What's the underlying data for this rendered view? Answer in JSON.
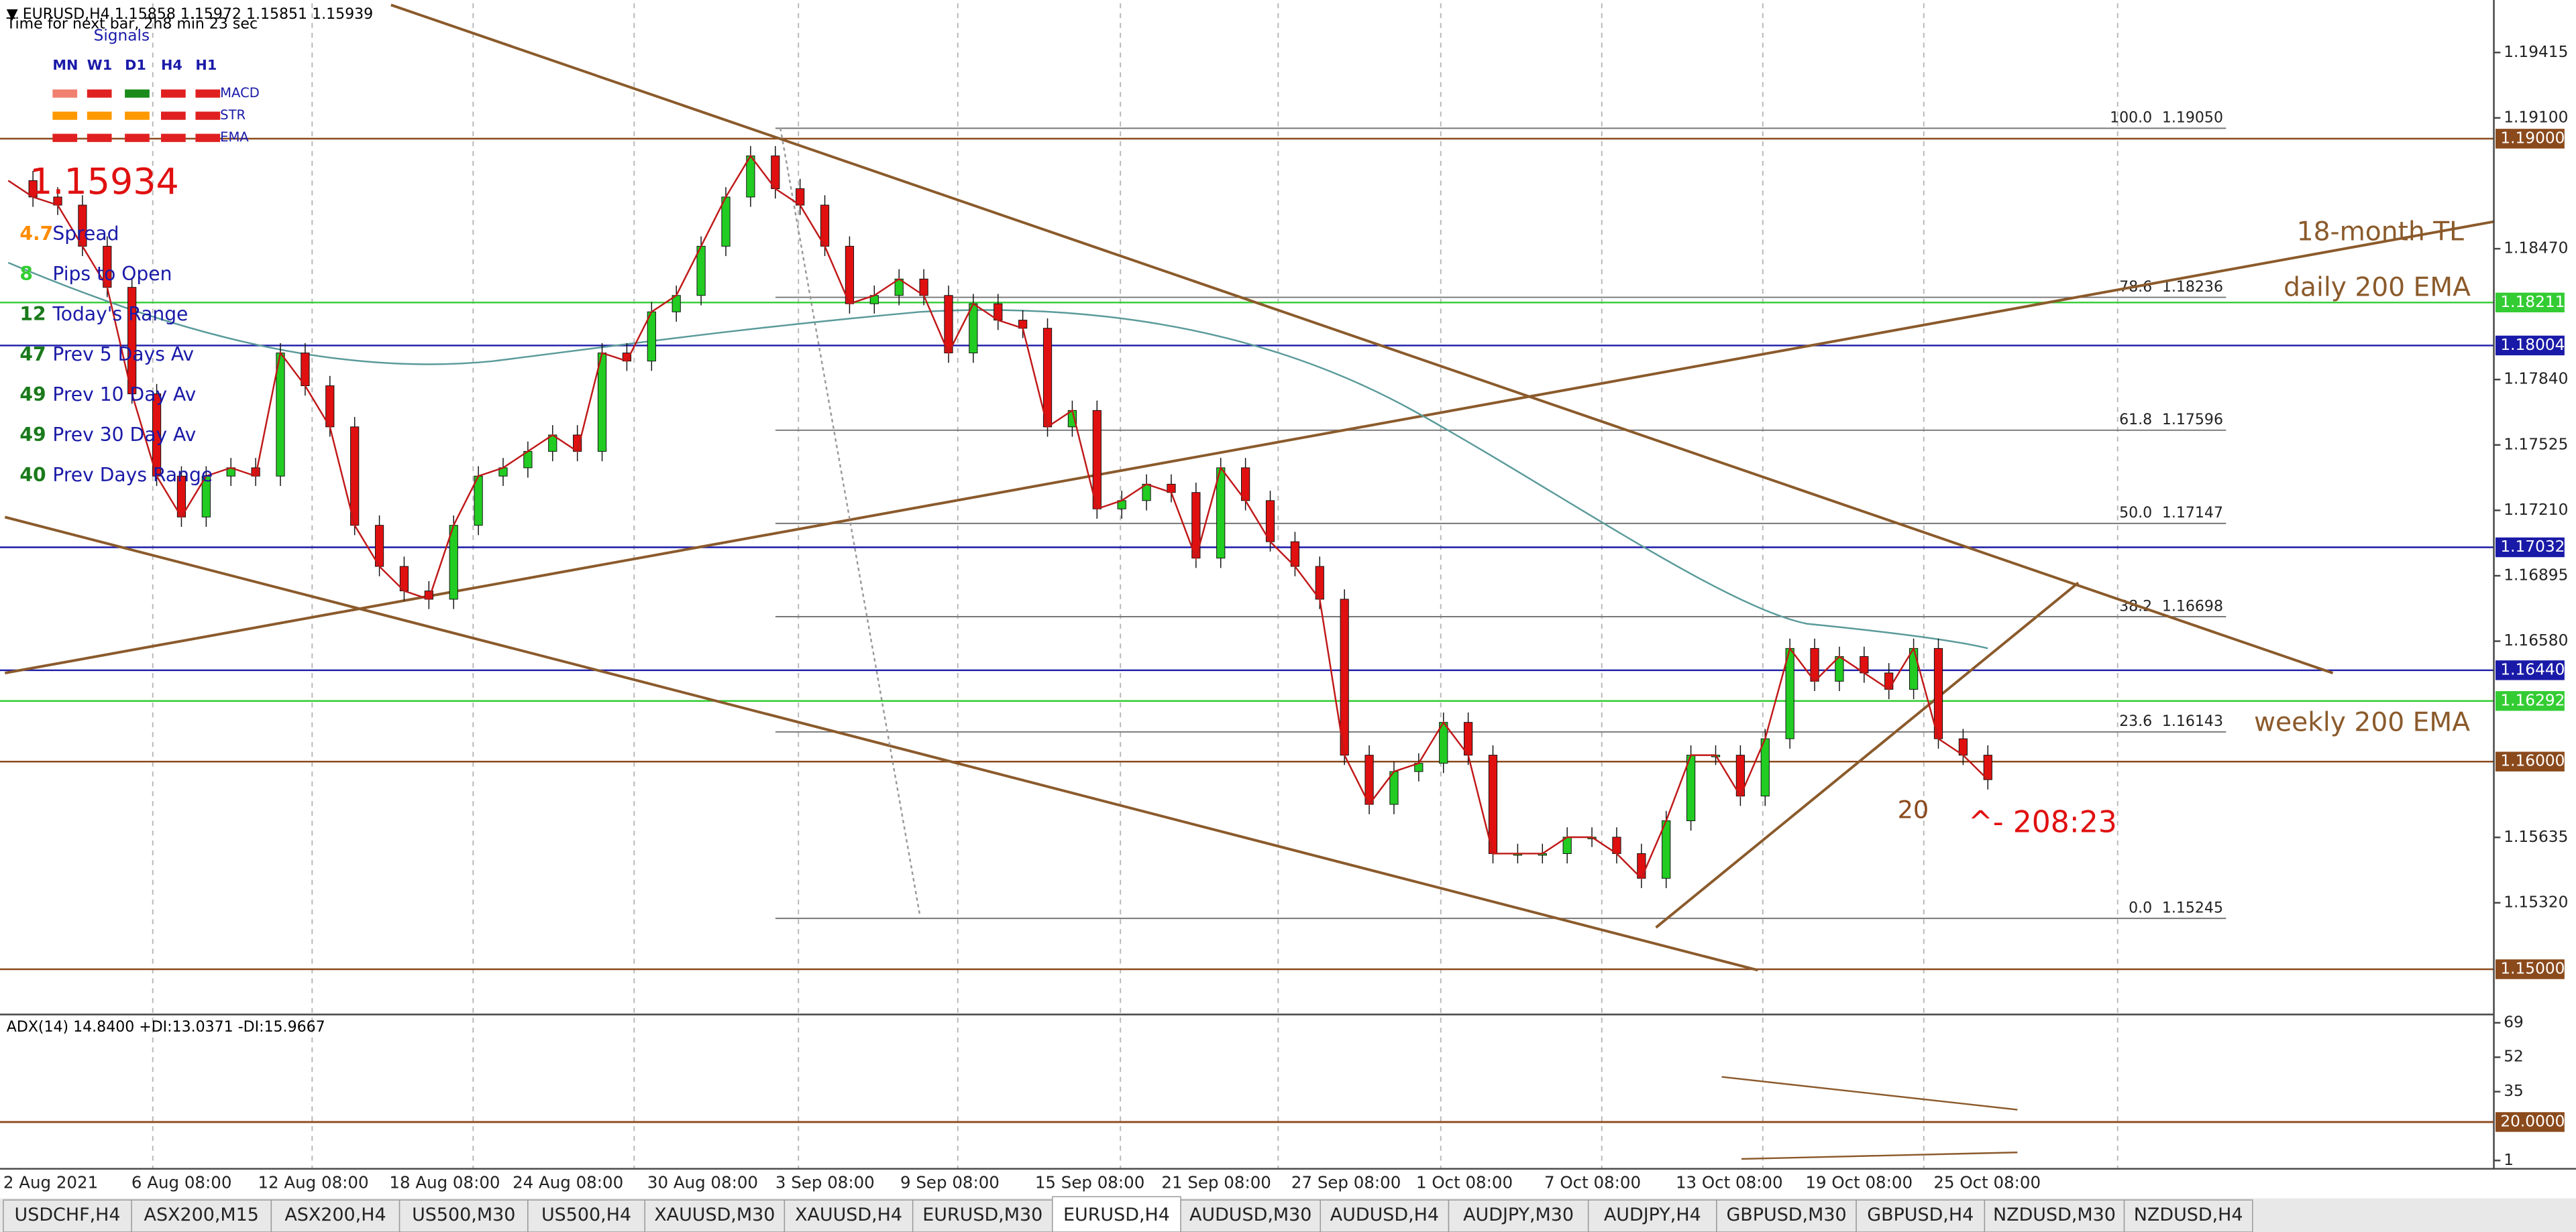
{
  "header": {
    "symbol_line": "▼ EURUSD,H4  1.15858 1.15972 1.15851 1.15939",
    "timer": "Time for next bar, 2h8 min 23 sec",
    "signals_title": "Signals"
  },
  "signals": {
    "columns": [
      "MN",
      "W1",
      "D1",
      "H4",
      "H1"
    ],
    "rows": [
      {
        "name": "MACD",
        "colors": [
          "#f08070",
          "#e02020",
          "#1a8a1a",
          "#e02020",
          "#e02020"
        ]
      },
      {
        "name": "STR",
        "colors": [
          "#ff9900",
          "#ff9900",
          "#ff9900",
          "#e02020",
          "#e02020"
        ]
      },
      {
        "name": "EMA",
        "colors": [
          "#e02020",
          "#e02020",
          "#e02020",
          "#e02020",
          "#e02020"
        ]
      }
    ]
  },
  "info": {
    "price": "1.15934",
    "rows": [
      {
        "value": "4.7",
        "label": "Spread",
        "color": "#ff8c00"
      },
      {
        "value": "8",
        "label": "Pips to Open",
        "color": "#32cd32"
      },
      {
        "value": "12",
        "label": "Today's Range",
        "color": "#1a7a1a"
      },
      {
        "value": "47",
        "label": "Prev 5 Days Av",
        "color": "#1a7a1a"
      },
      {
        "value": "49",
        "label": "Prev 10 Day Av",
        "color": "#1a7a1a"
      },
      {
        "value": "49",
        "label": "Prev 30 Day Av",
        "color": "#1a7a1a"
      },
      {
        "value": "40",
        "label": "Prev Days Range",
        "color": "#1a7a1a"
      }
    ]
  },
  "chart_data": {
    "type": "candles",
    "ylim": [
      1.1479,
      1.19652
    ],
    "yticks": [
      1.19415,
      {
        "value": 1.191,
        "label": "1.19100"
      },
      {
        "value": 1.1847,
        "label": "1.18470"
      },
      {
        "value": 1.1784,
        "label": "1.17840"
      },
      1.17525,
      {
        "value": 1.1721,
        "label": "1.17210"
      },
      1.16895,
      {
        "value": 1.1658,
        "label": "1.16580"
      },
      1.15635,
      {
        "value": 1.1532,
        "label": "1.15320"
      }
    ],
    "closes": [
      1.18798,
      1.18719,
      1.1868,
      1.18482,
      1.18284,
      1.17771,
      1.17375,
      1.17178,
      1.17375,
      1.17415,
      1.17375,
      1.17968,
      1.1781,
      1.17612,
      1.17138,
      1.1694,
      1.16822,
      1.16782,
      1.17138,
      1.17375,
      1.17415,
      1.17494,
      1.17573,
      1.17494,
      1.17968,
      1.17929,
      1.18166,
      1.18245,
      1.18482,
      1.18719,
      1.18917,
      1.18759,
      1.1868,
      1.18482,
      1.18205,
      1.18245,
      1.18324,
      1.18245,
      1.17968,
      1.18205,
      1.18126,
      1.18087,
      1.17612,
      1.17691,
      1.17217,
      1.17257,
      1.17336,
      1.17296,
      1.1698,
      1.17415,
      1.17257,
      1.17059,
      1.1694,
      1.16782,
      1.16031,
      1.15794,
      1.15952,
      1.15992,
      1.16189,
      1.16031,
      1.15557,
      1.15557,
      1.15557,
      1.15636,
      1.15636,
      1.15557,
      1.15438,
      1.15715,
      1.16031,
      1.16031,
      1.15834,
      1.1611,
      1.16545,
      1.16387,
      1.16506,
      1.16427,
      1.16348,
      1.16545,
      1.1611,
      1.16031,
      1.15913
    ],
    "up_color": "#22cc22",
    "down_color": "#e01010",
    "levels": [
      {
        "value": 1.19,
        "label": "1.19000",
        "color": "#8b4a1c"
      },
      {
        "value": 1.18211,
        "label": "1.18211",
        "color": "#33cc33"
      },
      {
        "value": 1.18004,
        "label": "1.18004",
        "color": "#1a1aa8"
      },
      {
        "value": 1.17032,
        "label": "1.17032",
        "color": "#1a1aa8"
      },
      {
        "value": 1.1644,
        "label": "1.16440",
        "color": "#1a1aa8"
      },
      {
        "value": 1.16292,
        "label": "1.16292",
        "color": "#33cc33"
      },
      {
        "value": 1.16,
        "label": "1.16000",
        "color": "#8b4a1c"
      },
      {
        "value": 1.15,
        "label": "1.15000",
        "color": "#8b4a1c"
      }
    ],
    "fib": [
      {
        "level": "100.0",
        "price": {
          "value": 1.1905,
          "label": "1.19050"
        }
      },
      {
        "level": "78.6",
        "price": 1.18236
      },
      {
        "level": "61.8",
        "price": 1.17596
      },
      {
        "level": "50.0",
        "price": 1.17147
      },
      {
        "level": "38.2",
        "price": 1.16698
      },
      {
        "level": "23.6",
        "price": 1.16143
      },
      {
        "level": "0.0",
        "price": 1.15245
      }
    ],
    "x_labels": [
      "2 Aug 2021",
      "6 Aug 08:00",
      "12 Aug 08:00",
      "18 Aug 08:00",
      "24 Aug 08:00",
      "30 Aug 08:00",
      "3 Sep 08:00",
      "9 Sep 08:00",
      "15 Sep 08:00",
      "21 Sep 08:00",
      "27 Sep 08:00",
      "1 Oct 08:00",
      "7 Oct 08:00",
      "13 Oct 08:00",
      "19 Oct 08:00",
      "25 Oct 08:00"
    ],
    "annotations": [
      "18-month TL",
      "daily 200 EMA",
      "weekly 200 EMA",
      "20",
      "^- 208:23"
    ]
  },
  "indicator": {
    "title": "ADX(14) 14.8400 +DI:13.0371 -DI:15.9667",
    "ylim": [
      -3.1,
      73.1
    ],
    "yticks": [
      69,
      52,
      35,
      1
    ],
    "level": {
      "value": 20,
      "label": "20.0000"
    }
  },
  "tabs": {
    "items": [
      "USDCHF,H4",
      "ASX200,M15",
      "ASX200,H4",
      "US500,M30",
      "US500,H4",
      "XAUUSD,M30",
      "XAUUSD,H4",
      "EURUSD,M30",
      "EURUSD,H4",
      "AUDUSD,M30",
      "AUDUSD,H4",
      "AUDJPY,M30",
      "AUDJPY,H4",
      "GBPUSD,M30",
      "GBPUSD,H4",
      "NZDUSD,M30",
      "NZDUSD,H4"
    ],
    "active": 8
  }
}
